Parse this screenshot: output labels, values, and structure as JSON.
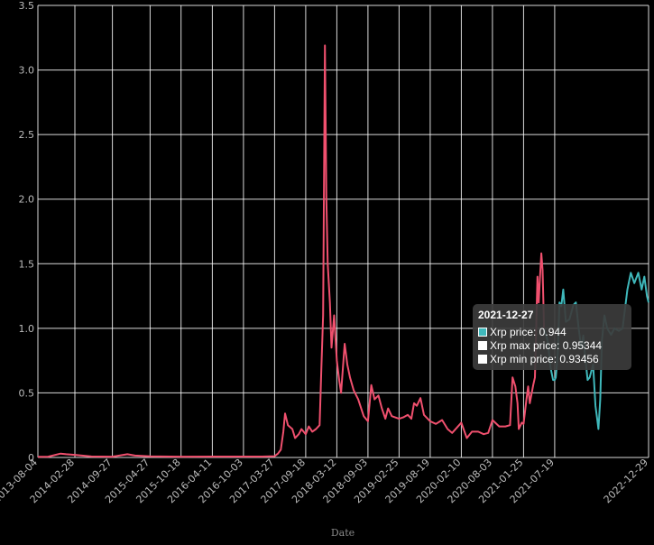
{
  "chart_data": {
    "type": "line",
    "title": "",
    "xlabel": "Date",
    "ylabel": "",
    "ylim": [
      0,
      3.5
    ],
    "yticks": [
      0,
      0.5,
      1.0,
      1.5,
      2.0,
      2.5,
      3.0,
      3.5
    ],
    "ytick_labels": [
      "0",
      "0.5",
      "1.0",
      "1.5",
      "2.0",
      "2.5",
      "3.0",
      "3.5"
    ],
    "xlim": [
      "2013-08-04",
      "2022-12-29"
    ],
    "xtick_labels": [
      "2013-08-04",
      "2014-02-28",
      "2014-09-27",
      "2015-04-27",
      "2015-10-18",
      "2016-04-11",
      "2016-10-03",
      "2017-03-27",
      "2017-09-18",
      "2018-03-12",
      "2018-09-03",
      "2019-02-25",
      "2019-08-19",
      "2020-02-10",
      "2020-08-03",
      "2021-01-25",
      "2021-07-19",
      "2022-12-29"
    ],
    "grid": true,
    "legend": "none",
    "series": [
      {
        "name": "Xrp price",
        "color": "#f0506e",
        "points": [
          [
            "2013-08-04",
            0.005
          ],
          [
            "2013-10-01",
            0.006
          ],
          [
            "2013-12-10",
            0.03
          ],
          [
            "2014-01-10",
            0.025
          ],
          [
            "2014-02-28",
            0.02
          ],
          [
            "2014-06-01",
            0.008
          ],
          [
            "2014-09-27",
            0.006
          ],
          [
            "2014-12-20",
            0.025
          ],
          [
            "2015-02-01",
            0.015
          ],
          [
            "2015-04-27",
            0.009
          ],
          [
            "2015-10-18",
            0.006
          ],
          [
            "2016-04-11",
            0.007
          ],
          [
            "2016-10-03",
            0.007
          ],
          [
            "2017-01-15",
            0.007
          ],
          [
            "2017-03-27",
            0.01
          ],
          [
            "2017-04-15",
            0.03
          ],
          [
            "2017-05-01",
            0.06
          ],
          [
            "2017-05-15",
            0.2
          ],
          [
            "2017-05-25",
            0.34
          ],
          [
            "2017-06-10",
            0.25
          ],
          [
            "2017-07-05",
            0.22
          ],
          [
            "2017-07-20",
            0.15
          ],
          [
            "2017-08-10",
            0.18
          ],
          [
            "2017-08-25",
            0.22
          ],
          [
            "2017-09-18",
            0.18
          ],
          [
            "2017-10-05",
            0.24
          ],
          [
            "2017-10-25",
            0.2
          ],
          [
            "2017-11-15",
            0.22
          ],
          [
            "2017-12-05",
            0.25
          ],
          [
            "2017-12-15",
            0.7
          ],
          [
            "2017-12-25",
            1.1
          ],
          [
            "2018-01-04",
            3.19
          ],
          [
            "2018-01-12",
            2.0
          ],
          [
            "2018-01-20",
            1.5
          ],
          [
            "2018-02-01",
            1.2
          ],
          [
            "2018-02-10",
            0.85
          ],
          [
            "2018-02-25",
            1.1
          ],
          [
            "2018-03-12",
            0.75
          ],
          [
            "2018-03-25",
            0.6
          ],
          [
            "2018-04-05",
            0.5
          ],
          [
            "2018-04-25",
            0.88
          ],
          [
            "2018-05-10",
            0.72
          ],
          [
            "2018-05-25",
            0.62
          ],
          [
            "2018-06-15",
            0.52
          ],
          [
            "2018-07-10",
            0.45
          ],
          [
            "2018-08-10",
            0.32
          ],
          [
            "2018-09-03",
            0.28
          ],
          [
            "2018-09-22",
            0.56
          ],
          [
            "2018-10-10",
            0.45
          ],
          [
            "2018-11-01",
            0.48
          ],
          [
            "2018-11-20",
            0.38
          ],
          [
            "2018-12-10",
            0.3
          ],
          [
            "2018-12-25",
            0.38
          ],
          [
            "2019-01-15",
            0.32
          ],
          [
            "2019-02-25",
            0.3
          ],
          [
            "2019-03-20",
            0.31
          ],
          [
            "2019-04-15",
            0.33
          ],
          [
            "2019-05-05",
            0.3
          ],
          [
            "2019-05-20",
            0.42
          ],
          [
            "2019-06-05",
            0.4
          ],
          [
            "2019-06-25",
            0.46
          ],
          [
            "2019-07-15",
            0.33
          ],
          [
            "2019-08-19",
            0.28
          ],
          [
            "2019-09-20",
            0.26
          ],
          [
            "2019-10-25",
            0.29
          ],
          [
            "2019-11-25",
            0.22
          ],
          [
            "2019-12-20",
            0.19
          ],
          [
            "2020-02-10",
            0.27
          ],
          [
            "2020-03-12",
            0.15
          ],
          [
            "2020-04-10",
            0.2
          ],
          [
            "2020-05-15",
            0.2
          ],
          [
            "2020-06-15",
            0.18
          ],
          [
            "2020-07-10",
            0.19
          ],
          [
            "2020-08-03",
            0.29
          ],
          [
            "2020-09-10",
            0.24
          ],
          [
            "2020-10-15",
            0.24
          ],
          [
            "2020-11-10",
            0.25
          ],
          [
            "2020-11-24",
            0.62
          ],
          [
            "2020-12-10",
            0.55
          ],
          [
            "2020-12-22",
            0.42
          ],
          [
            "2020-12-29",
            0.22
          ],
          [
            "2021-01-15",
            0.27
          ],
          [
            "2021-01-25",
            0.26
          ],
          [
            "2021-02-10",
            0.45
          ],
          [
            "2021-02-20",
            0.55
          ],
          [
            "2021-03-01",
            0.42
          ],
          [
            "2021-03-20",
            0.56
          ],
          [
            "2021-03-30",
            0.62
          ],
          [
            "2021-04-06",
            1.0
          ],
          [
            "2021-04-13",
            1.4
          ],
          [
            "2021-04-20",
            1.2
          ],
          [
            "2021-04-27",
            1.38
          ],
          [
            "2021-05-05",
            1.58
          ],
          [
            "2021-05-12",
            1.45
          ],
          [
            "2021-05-20",
            1.0
          ]
        ]
      },
      {
        "name": "Xrp price",
        "color": "#3fb8bb",
        "points": [
          [
            "2021-05-20",
            1.0
          ],
          [
            "2021-06-10",
            0.9
          ],
          [
            "2021-06-25",
            0.7
          ],
          [
            "2021-07-10",
            0.6
          ],
          [
            "2021-07-19",
            0.6
          ],
          [
            "2021-07-25",
            0.62
          ],
          [
            "2021-08-05",
            0.8
          ],
          [
            "2021-08-15",
            1.2
          ],
          [
            "2021-08-25",
            1.17
          ],
          [
            "2021-09-05",
            1.3
          ],
          [
            "2021-09-20",
            1.05
          ],
          [
            "2021-10-10",
            1.07
          ],
          [
            "2021-11-01",
            1.18
          ],
          [
            "2021-11-15",
            1.2
          ],
          [
            "2021-12-01",
            1.0
          ],
          [
            "2021-12-15",
            0.85
          ],
          [
            "2021-12-27",
            0.944
          ],
          [
            "2022-01-05",
            0.8
          ],
          [
            "2022-01-20",
            0.6
          ],
          [
            "2022-02-01",
            0.62
          ],
          [
            "2022-02-20",
            0.72
          ],
          [
            "2022-03-05",
            0.4
          ],
          [
            "2022-03-15",
            0.3
          ],
          [
            "2022-03-22",
            0.22
          ],
          [
            "2022-04-01",
            0.45
          ],
          [
            "2022-04-10",
            0.9
          ],
          [
            "2022-04-25",
            1.1
          ],
          [
            "2022-05-10",
            1.0
          ],
          [
            "2022-06-01",
            0.95
          ],
          [
            "2022-06-20",
            1.0
          ],
          [
            "2022-07-15",
            0.98
          ],
          [
            "2022-08-05",
            1.0
          ],
          [
            "2022-09-01",
            1.3
          ],
          [
            "2022-09-20",
            1.43
          ],
          [
            "2022-10-10",
            1.35
          ],
          [
            "2022-11-01",
            1.43
          ],
          [
            "2022-11-20",
            1.3
          ],
          [
            "2022-12-05",
            1.4
          ],
          [
            "2022-12-20",
            1.25
          ],
          [
            "2022-12-29",
            1.2
          ]
        ]
      }
    ],
    "tooltip": {
      "title": "2021-12-27",
      "rows": [
        {
          "label": "Xrp price: 0.944",
          "color": "#3fb8bb"
        },
        {
          "label": "Xrp max price: 0.95344",
          "color": "#ffffff"
        },
        {
          "label": "Xrp min price: 0.93456",
          "color": "#ffffff"
        }
      ]
    }
  }
}
